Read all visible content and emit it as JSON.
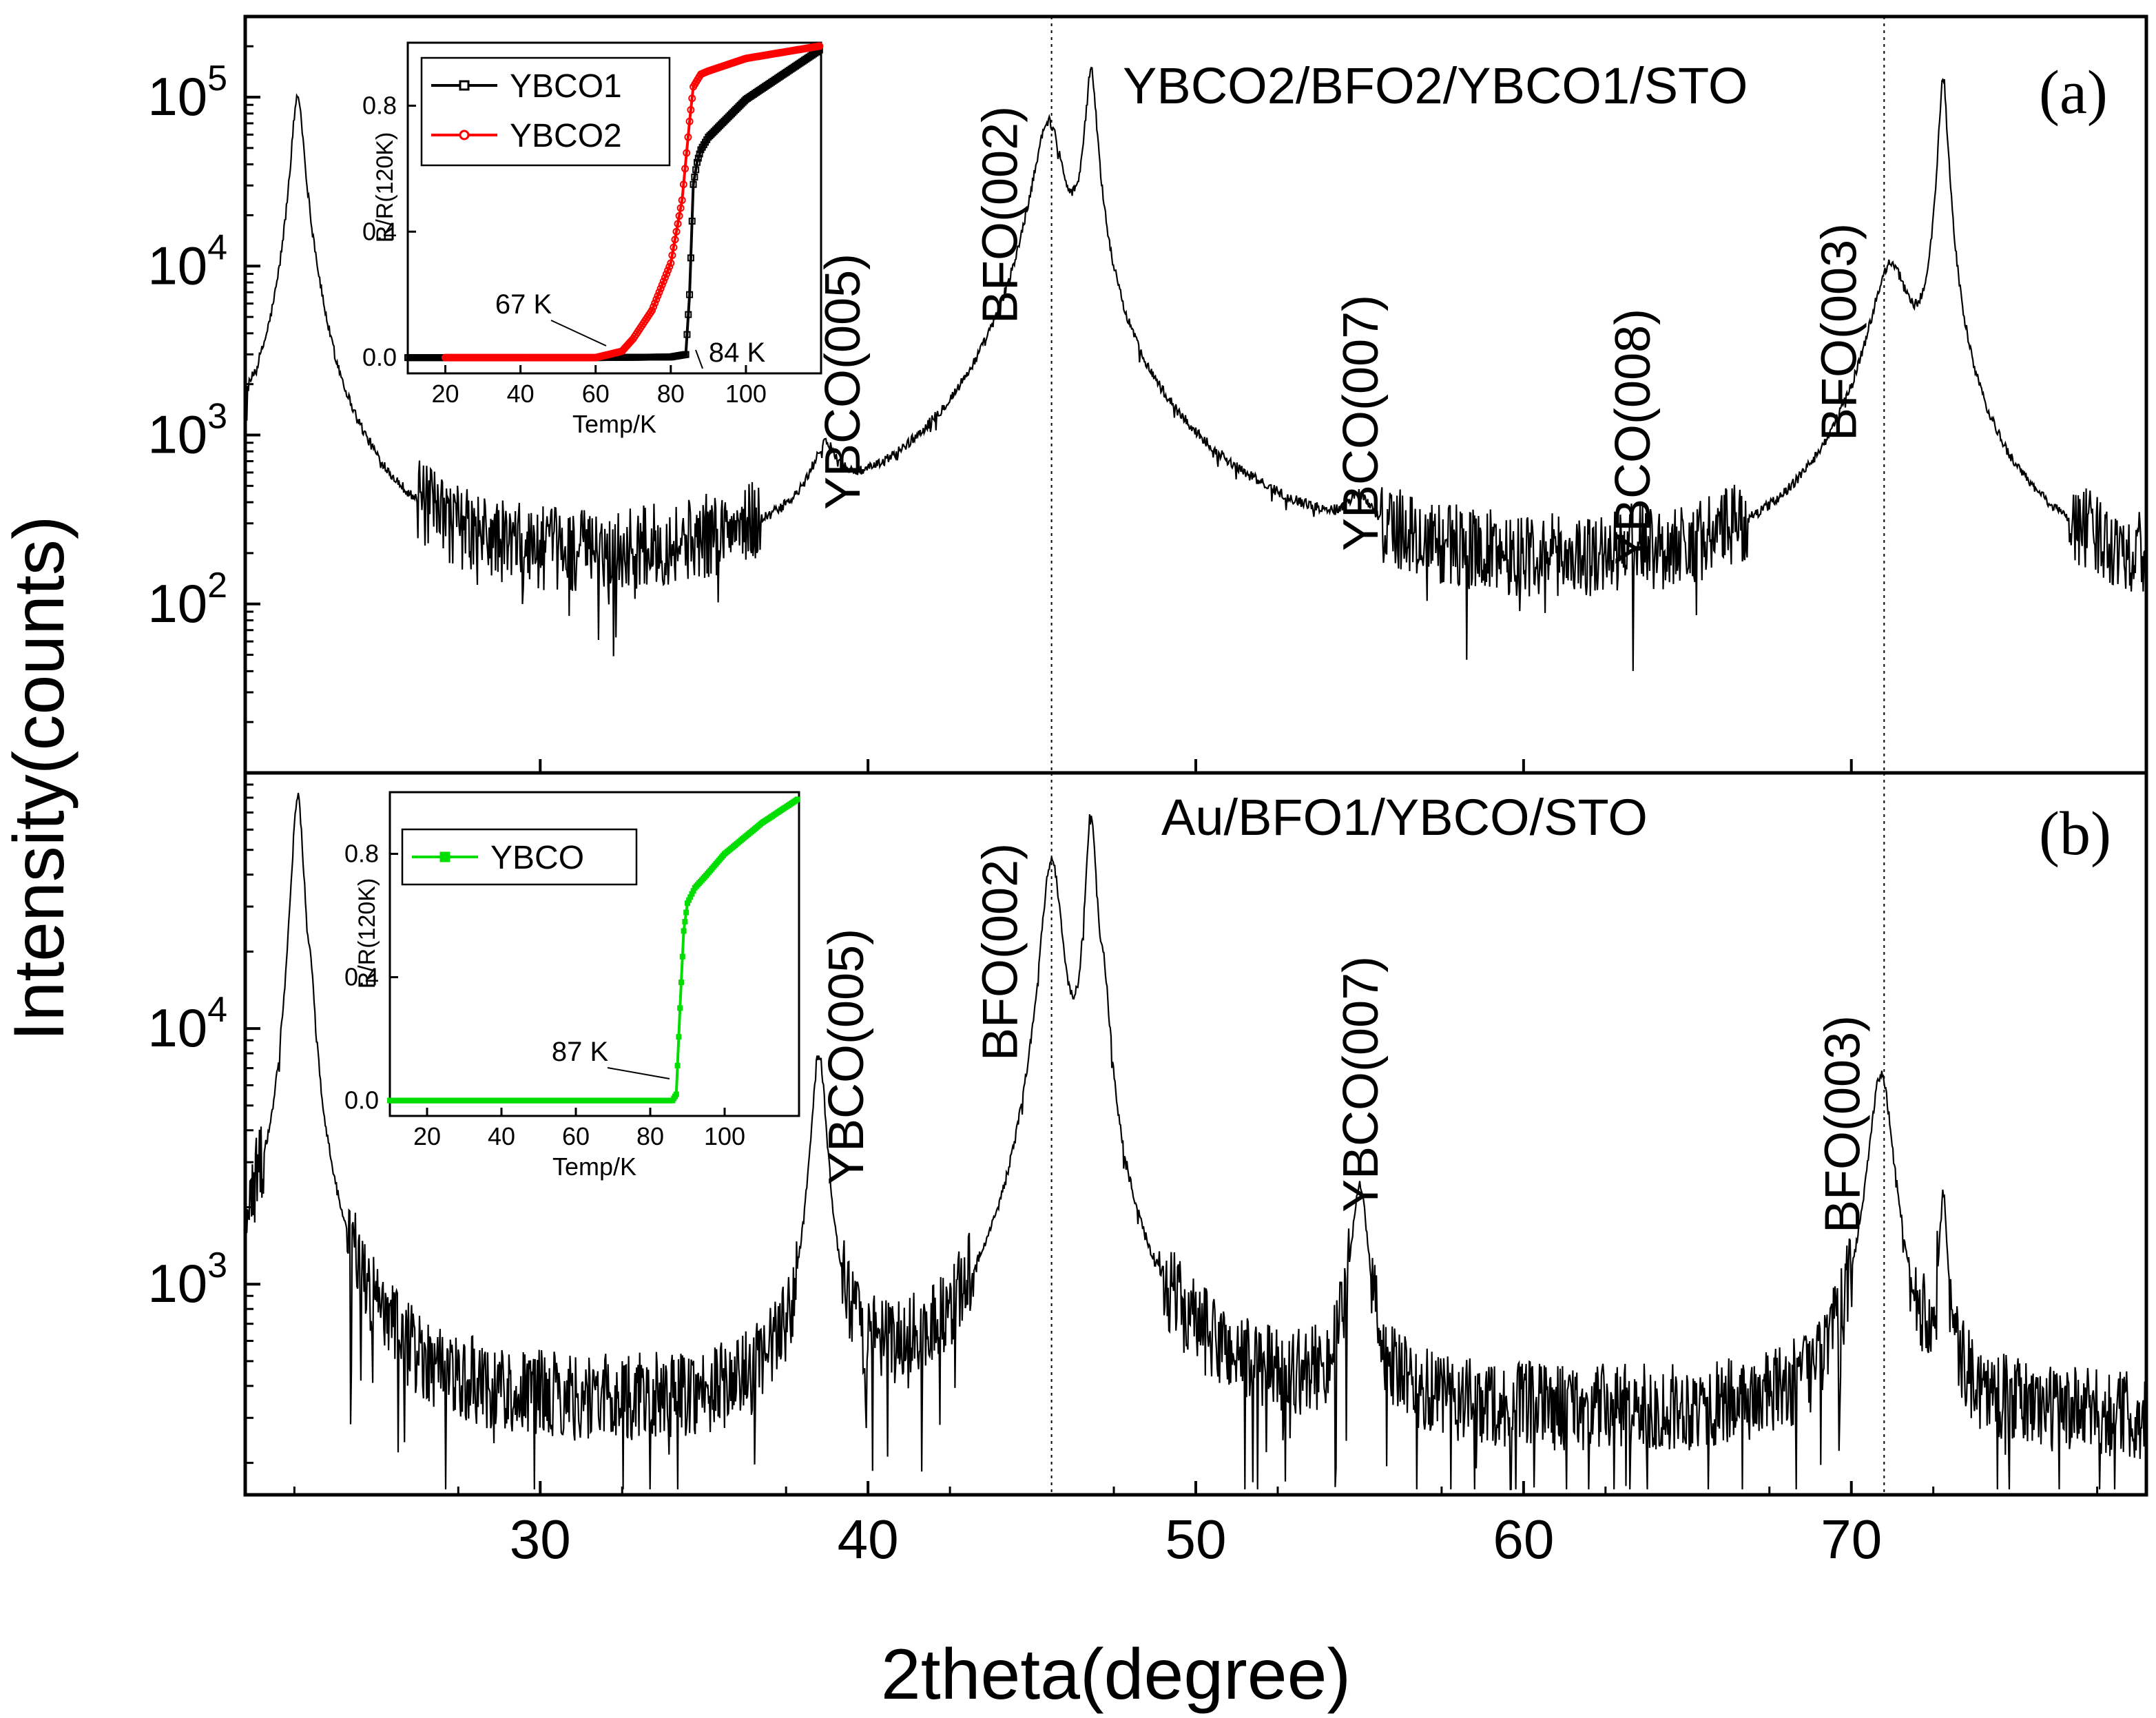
{
  "figure": {
    "ylabel": "Intensity(counts)",
    "xlabel": "2theta(degree)",
    "xlim": [
      21,
      79
    ],
    "xticks": [
      30,
      40,
      50,
      60,
      70
    ]
  },
  "chart_data": [
    {
      "type": "line",
      "panel": "(a)",
      "title": "YBCO2/BFO2/YBCO1/STO",
      "xlabel": "2theta(degree)",
      "ylabel": "Intensity(counts)",
      "yscale": "log",
      "ylim": [
        10,
        300000
      ],
      "yticks": [
        {
          "base": "10",
          "exp": "2",
          "value": 100
        },
        {
          "base": "10",
          "exp": "3",
          "value": 1000
        },
        {
          "base": "10",
          "exp": "4",
          "value": 10000
        },
        {
          "base": "10",
          "exp": "5",
          "value": 100000
        }
      ],
      "baseline_start": 500,
      "baseline": 80,
      "peaks": [
        {
          "x": 22.6,
          "y": 100000,
          "w": 0.18
        },
        {
          "x": 23.0,
          "y": 2500,
          "w": 0.3
        },
        {
          "x": 38.7,
          "y": 470,
          "w": 0.45
        },
        {
          "x": 45.5,
          "y": 70000,
          "w": 0.42
        },
        {
          "x": 46.8,
          "y": 140000,
          "w": 0.16
        },
        {
          "x": 55.0,
          "y": 160,
          "w": 0.45
        },
        {
          "x": 63.4,
          "y": 60,
          "w": 0.15
        },
        {
          "x": 71.2,
          "y": 9500,
          "w": 0.55
        },
        {
          "x": 72.8,
          "y": 130000,
          "w": 0.12
        }
      ],
      "peak_labels": [
        {
          "text": "YBCO(005)",
          "x": 39.2
        },
        {
          "text": "BFO(002)",
          "x": 44.0
        },
        {
          "text": "YBCO(007)",
          "x": 55.0
        },
        {
          "text": "YBCO(008)",
          "x": 63.3
        },
        {
          "text": "BFO(003)",
          "x": 69.6
        }
      ],
      "reference_lines_x": [
        45.6,
        71.0
      ],
      "inset": {
        "xlabel": "Temp/K",
        "ylabel": "R/R(120K)",
        "xlim": [
          10,
          120
        ],
        "ylim": [
          -0.05,
          1.0
        ],
        "xticks": [
          "20",
          "40",
          "60",
          "80",
          "100"
        ],
        "yticks": [
          "0.0",
          "0.4",
          "0.8"
        ],
        "series": [
          {
            "name": "YBCO1",
            "color": "#000000",
            "marker": "open-square",
            "x": [
              10,
              20,
              40,
              60,
              80,
              84,
              85,
              86,
              87,
              88,
              90,
              95,
              100,
              110,
              120
            ],
            "y": [
              0,
              0,
              0,
              0,
              0.002,
              0.01,
              0.2,
              0.55,
              0.62,
              0.66,
              0.7,
              0.76,
              0.82,
              0.9,
              0.98
            ]
          },
          {
            "name": "YBCO2",
            "color": "#ff0000",
            "marker": "open-circle",
            "x": [
              20,
              40,
              60,
              67,
              70,
              75,
              80,
              83,
              85,
              86,
              88,
              90,
              95,
              100,
              110,
              120
            ],
            "y": [
              0,
              0,
              0,
              0.02,
              0.06,
              0.15,
              0.3,
              0.5,
              0.75,
              0.86,
              0.9,
              0.91,
              0.93,
              0.95,
              0.97,
              0.99
            ]
          }
        ],
        "annotations": [
          {
            "text": "67 K",
            "x": 67,
            "y": 0.0
          },
          {
            "text": "84 K",
            "x": 84,
            "y": 0.0
          }
        ]
      }
    },
    {
      "type": "line",
      "panel": "(b)",
      "title": "Au/BFO1/YBCO/STO",
      "xlabel": "2theta(degree)",
      "ylabel": "Intensity(counts)",
      "yscale": "log",
      "ylim": [
        150,
        100000
      ],
      "yticks": [
        {
          "base": "10",
          "exp": "3",
          "value": 1000
        },
        {
          "base": "10",
          "exp": "4",
          "value": 10000
        }
      ],
      "baseline_start": 1000,
      "baseline": 290,
      "peaks": [
        {
          "x": 22.6,
          "y": 80000,
          "w": 0.18
        },
        {
          "x": 23.0,
          "y": 5000,
          "w": 0.12
        },
        {
          "x": 38.5,
          "y": 7600,
          "w": 0.22
        },
        {
          "x": 45.6,
          "y": 45000,
          "w": 0.3
        },
        {
          "x": 46.8,
          "y": 65000,
          "w": 0.16
        },
        {
          "x": 47.2,
          "y": 8000,
          "w": 0.18
        },
        {
          "x": 55.0,
          "y": 2100,
          "w": 0.25
        },
        {
          "x": 70.9,
          "y": 6300,
          "w": 0.35
        },
        {
          "x": 72.8,
          "y": 1800,
          "w": 0.12
        }
      ],
      "peak_labels": [
        {
          "text": "YBCO(005)",
          "x": 39.3
        },
        {
          "text": "BFO(002)",
          "x": 44.0
        },
        {
          "text": "YBCO(007)",
          "x": 55.0
        },
        {
          "text": "BFO(003)",
          "x": 69.7
        }
      ],
      "reference_lines_x": [
        45.6,
        71.0
      ],
      "inset": {
        "xlabel": "Temp/K",
        "ylabel": "R/R(120K)",
        "xlim": [
          10,
          120
        ],
        "ylim": [
          -0.05,
          1.0
        ],
        "xticks": [
          "20",
          "40",
          "60",
          "80",
          "100"
        ],
        "yticks": [
          "0.0",
          "0.4",
          "0.8"
        ],
        "series": [
          {
            "name": "YBCO",
            "color": "#00dd00",
            "marker": "filled-square",
            "x": [
              10,
              20,
              40,
              60,
              80,
              86,
              87,
              88,
              89,
              90,
              92,
              95,
              100,
              110,
              120
            ],
            "y": [
              0,
              0,
              0,
              0,
              0,
              0,
              0.02,
              0.3,
              0.55,
              0.64,
              0.69,
              0.73,
              0.8,
              0.9,
              0.98
            ]
          }
        ],
        "annotations": [
          {
            "text": "87 K",
            "x": 87,
            "y": 0.0
          }
        ]
      }
    }
  ]
}
